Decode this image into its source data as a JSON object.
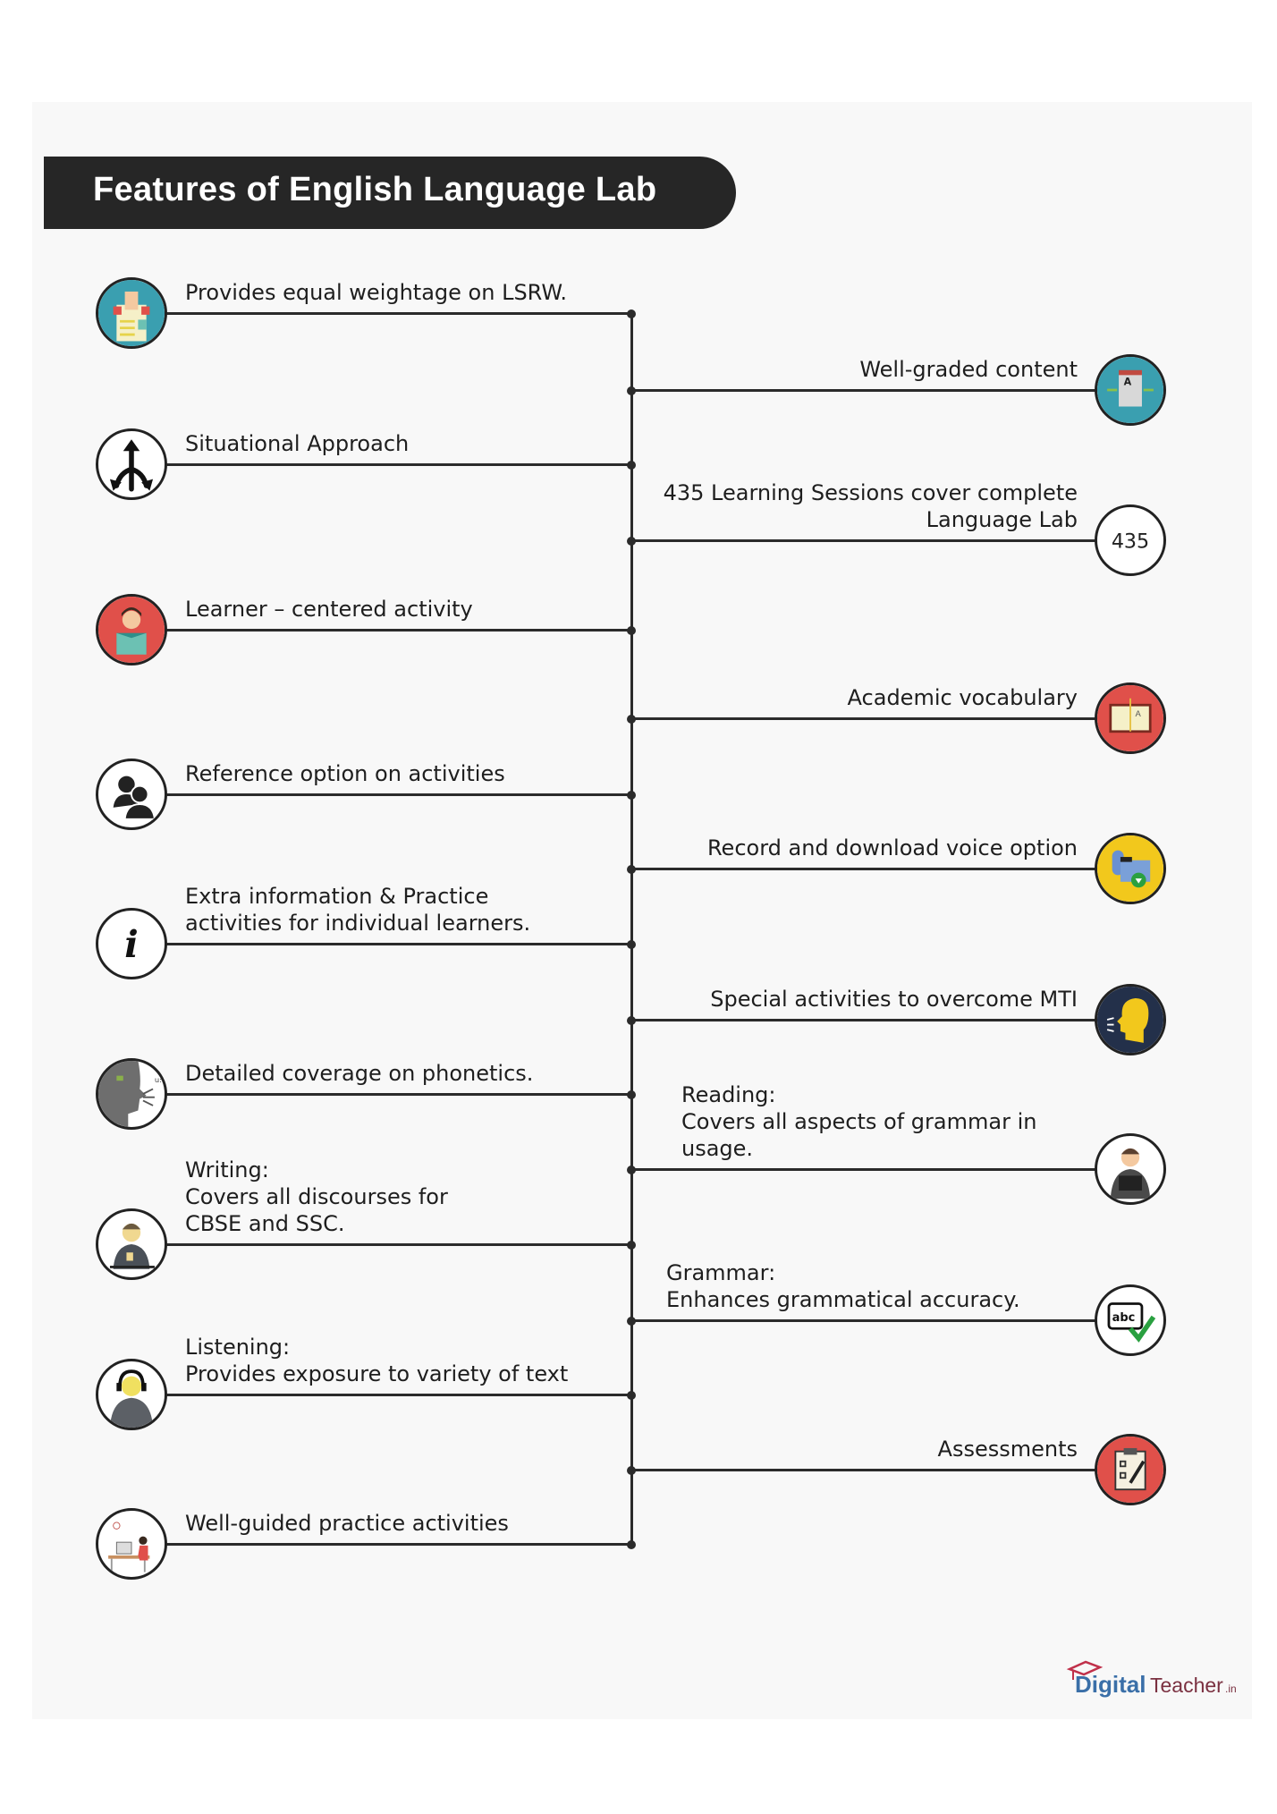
{
  "title": "Features of English Language Lab",
  "left_items": [
    {
      "lines": [
        "Provides equal weightage on LSRW."
      ],
      "icon": "lsrw-book-icon"
    },
    {
      "lines": [
        "Situational Approach"
      ],
      "icon": "split-arrows-icon"
    },
    {
      "lines": [
        "Learner – centered activity"
      ],
      "icon": "learner-reading-icon"
    },
    {
      "lines": [
        "Reference option on activities"
      ],
      "icon": "people-group-icon"
    },
    {
      "lines": [
        "Extra information & Practice",
        "activities for individual learners."
      ],
      "icon": "info-icon"
    },
    {
      "lines": [
        "Detailed coverage on phonetics."
      ],
      "icon": "speaking-head-phonetics-icon"
    },
    {
      "lines": [
        "Writing:",
        "Covers all discourses for",
        "CBSE and SSC."
      ],
      "icon": "writing-person-icon"
    },
    {
      "lines": [
        "Listening:",
        "Provides exposure to variety of text"
      ],
      "icon": "headphones-person-icon"
    },
    {
      "lines": [
        "Well-guided practice activities"
      ],
      "icon": "desk-computer-icon"
    }
  ],
  "right_items": [
    {
      "lines": [
        "Well-graded content"
      ],
      "icon": "graded-content-icon",
      "align": "right"
    },
    {
      "lines": [
        "435 Learning Sessions cover complete",
        "Language Lab"
      ],
      "icon": "number-435-icon",
      "icon_text": "435",
      "align": "right"
    },
    {
      "lines": [
        "Academic vocabulary"
      ],
      "icon": "vocabulary-book-icon",
      "align": "right"
    },
    {
      "lines": [
        "Record and download voice option"
      ],
      "icon": "mic-download-icon",
      "align": "right"
    },
    {
      "lines": [
        "Special activities to overcome MTI"
      ],
      "icon": "speaking-head-icon",
      "align": "right"
    },
    {
      "lines": [
        "Reading:",
        "Covers all aspects of grammar in",
        "usage."
      ],
      "icon": "reading-person-icon",
      "align": "left"
    },
    {
      "lines": [
        "Grammar:",
        "Enhances grammatical accuracy."
      ],
      "icon": "abc-check-icon",
      "align": "left"
    },
    {
      "lines": [
        "Assessments"
      ],
      "icon": "clipboard-icon",
      "align": "right"
    }
  ],
  "logo": {
    "text_main": "Digital",
    "text_second": "Teacher",
    "suffix": ".in"
  },
  "colors": {
    "title_bg": "#262626",
    "panel_bg": "#f8f8f8",
    "teal": "#3a9fb0",
    "red": "#e0504a",
    "yellow": "#f2c81c",
    "navy": "#23304a"
  }
}
